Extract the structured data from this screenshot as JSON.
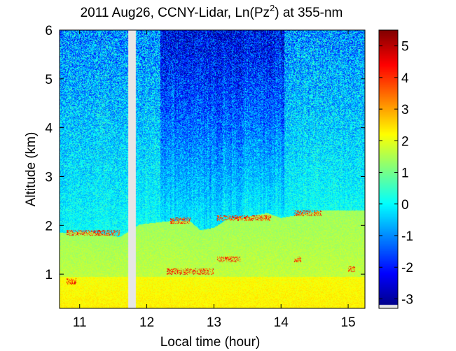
{
  "chart_data": {
    "type": "heatmap",
    "title_parts": {
      "prefix": "2011 Aug26, CCNY-Lidar, Ln(Pz",
      "superscript": "2",
      "suffix": ") at 355-nm"
    },
    "xlabel": "Local time (hour)",
    "ylabel": "Altitude (km)",
    "xlim": [
      10.7,
      15.25
    ],
    "ylim": [
      0.3,
      6.0
    ],
    "x_ticks": [
      11,
      12,
      13,
      14,
      15
    ],
    "y_ticks": [
      1,
      2,
      3,
      4,
      5,
      6
    ],
    "x_tick_labels": [
      "11",
      "12",
      "13",
      "14",
      "15"
    ],
    "y_tick_labels": [
      "1",
      "2",
      "3",
      "4",
      "5",
      "6"
    ],
    "colorbar": {
      "range": [
        -3.3,
        5.5
      ],
      "ticks": [
        -3,
        -2,
        -1,
        0,
        1,
        2,
        3,
        4,
        5
      ],
      "tick_labels": [
        "-3",
        "-2",
        "-1",
        "0",
        "1",
        "2",
        "3",
        "4",
        "5"
      ],
      "colormap": "jet"
    },
    "data_gap": {
      "x_range": [
        11.72,
        11.84
      ],
      "color": "#e6e6e6"
    },
    "features": {
      "boundary_layer_top_km": [
        [
          10.8,
          1.85
        ],
        [
          11.0,
          1.87
        ],
        [
          11.2,
          1.86
        ],
        [
          11.4,
          1.8
        ],
        [
          11.6,
          1.76
        ],
        [
          11.9,
          2.02
        ],
        [
          12.1,
          2.05
        ],
        [
          12.3,
          2.08
        ],
        [
          12.5,
          2.1
        ],
        [
          12.65,
          2.08
        ],
        [
          12.8,
          1.9
        ],
        [
          13.0,
          1.95
        ],
        [
          13.2,
          2.12
        ],
        [
          13.4,
          2.15
        ],
        [
          13.6,
          2.2
        ],
        [
          13.8,
          2.25
        ],
        [
          14.0,
          2.15
        ],
        [
          14.2,
          2.2
        ],
        [
          14.4,
          2.25
        ],
        [
          14.6,
          2.3
        ],
        [
          15.0,
          2.3
        ],
        [
          15.2,
          2.3
        ]
      ],
      "low_cloud_events": [
        {
          "x": [
            12.3,
            13.0
          ],
          "altitude_km": 1.05
        },
        {
          "x": [
            13.05,
            13.4
          ],
          "altitude_km": 1.3
        },
        {
          "x": [
            14.2,
            14.3
          ],
          "altitude_km": 1.3
        },
        {
          "x": [
            15.0,
            15.1
          ],
          "altitude_km": 1.1
        },
        {
          "x": [
            10.8,
            10.95
          ],
          "altitude_km": 0.85
        }
      ],
      "upper_cloud_events": [
        {
          "x": [
            10.8,
            11.6
          ],
          "altitude_km": 1.85
        },
        {
          "x": [
            12.35,
            12.65
          ],
          "altitude_km": 2.1
        },
        {
          "x": [
            13.05,
            13.85
          ],
          "altitude_km": 2.15
        },
        {
          "x": [
            14.2,
            14.6
          ],
          "altitude_km": 2.25
        }
      ]
    }
  }
}
